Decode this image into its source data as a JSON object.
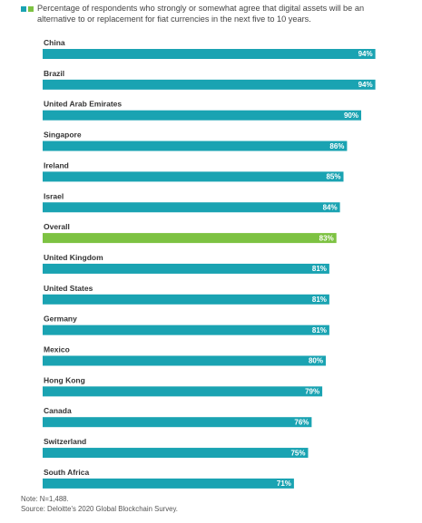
{
  "colors": {
    "primary_bar": "#1aa3b2",
    "highlight_bar": "#7dc242"
  },
  "chart_data": {
    "type": "bar",
    "orientation": "horizontal",
    "legend_text": "Percentage of respondents who strongly or somewhat agree that digital assets will be an alternative to or replacement for fiat currencies in the next five to 10 years.",
    "categories": [
      "China",
      "Brazil",
      "United Arab Emirates",
      "Singapore",
      "Ireland",
      "Israel",
      "Overall",
      "United Kingdom",
      "United States",
      "Germany",
      "Mexico",
      "Hong Kong",
      "Canada",
      "Switzerland",
      "South Africa"
    ],
    "values": [
      94,
      94,
      90,
      86,
      85,
      84,
      83,
      81,
      81,
      81,
      80,
      79,
      76,
      75,
      71
    ],
    "value_labels": [
      "94%",
      "94%",
      "90%",
      "86%",
      "85%",
      "84%",
      "83%",
      "81%",
      "81%",
      "81%",
      "80%",
      "79%",
      "76%",
      "75%",
      "71%"
    ],
    "highlight_category": "Overall",
    "xlim": [
      0,
      100
    ],
    "grid": false
  },
  "notes": {
    "note": "Note: N=1,488.",
    "source": "Source: Deloitte's 2020 Global Blockchain Survey."
  }
}
